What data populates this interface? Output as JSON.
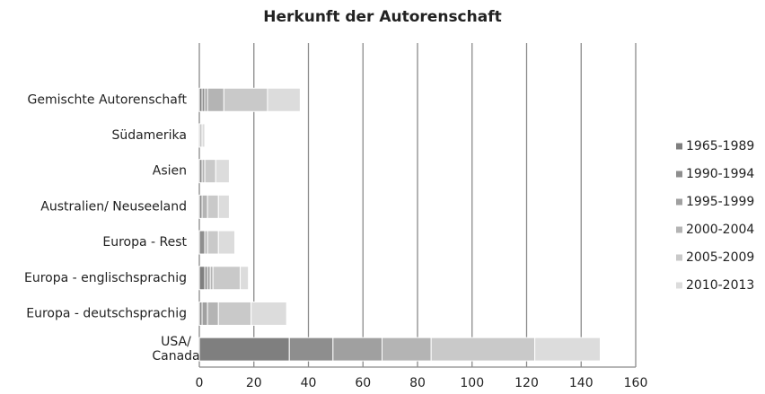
{
  "chart_data": {
    "type": "stacked_barh",
    "title": "Herkunft der Autorenschaft",
    "categories": [
      "Gemischte Autorenschaft",
      "Südamerika",
      "Asien",
      "Australien/ Neuseeland",
      "Europa - Rest",
      "Europa - englischsprachig",
      "Europa - deutschsprachig",
      "USA/ Canada"
    ],
    "series": [
      {
        "name": "1965-1989",
        "color": "#7f7f7f",
        "values": [
          1,
          0,
          0,
          0,
          0,
          2,
          0,
          33
        ]
      },
      {
        "name": "1990-1994",
        "color": "#8e8e8e",
        "values": [
          1,
          0,
          1,
          1,
          2,
          1,
          1,
          16
        ]
      },
      {
        "name": "1995-1999",
        "color": "#a0a0a0",
        "values": [
          1,
          0,
          0,
          0,
          0,
          1,
          2,
          18
        ]
      },
      {
        "name": "2000-2004",
        "color": "#b4b4b4",
        "values": [
          6,
          0,
          1,
          2,
          1,
          1,
          4,
          18
        ]
      },
      {
        "name": "2005-2009",
        "color": "#c9c9c9",
        "values": [
          16,
          1,
          4,
          4,
          4,
          10,
          12,
          38
        ]
      },
      {
        "name": "2010-2013",
        "color": "#dcdcdc",
        "values": [
          12,
          1,
          5,
          4,
          6,
          3,
          13,
          24
        ]
      }
    ],
    "xlim": [
      0,
      160
    ],
    "xticks": [
      0,
      20,
      40,
      60,
      80,
      100,
      120,
      140,
      160
    ],
    "grid": true,
    "legend": "right"
  }
}
